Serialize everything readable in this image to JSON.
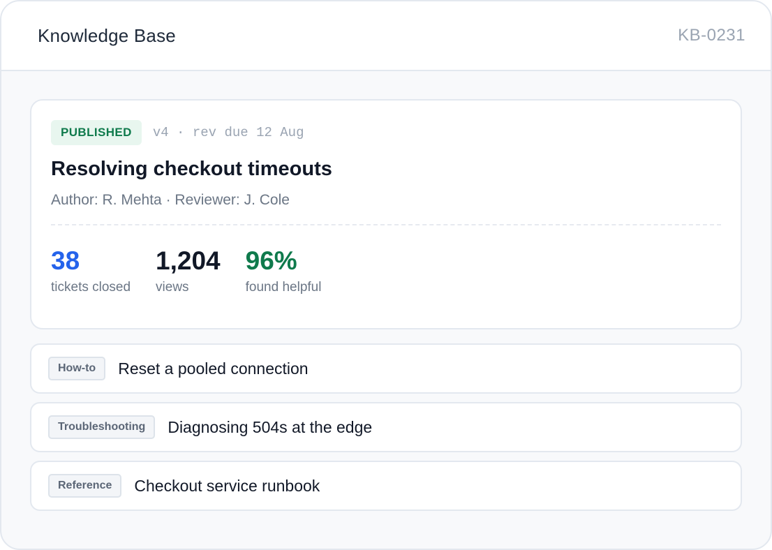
{
  "header": {
    "title": "Knowledge Base",
    "id": "KB-0231"
  },
  "article": {
    "status": "PUBLISHED",
    "meta": "v4 · rev due 12 Aug",
    "title": "Resolving checkout timeouts",
    "byline": "Author: R. Mehta · Reviewer: J. Cole",
    "stats": [
      {
        "value": "38",
        "label": "tickets closed",
        "color": "#2563eb"
      },
      {
        "value": "1,204",
        "label": "views",
        "color": "#111827"
      },
      {
        "value": "96%",
        "label": "found helpful",
        "color": "#0f7a4c"
      }
    ]
  },
  "related": [
    {
      "tag": "How-to",
      "label": "Reset a pooled connection"
    },
    {
      "tag": "Troubleshooting",
      "label": "Diagnosing 504s at the edge"
    },
    {
      "tag": "Reference",
      "label": "Checkout service runbook"
    }
  ]
}
